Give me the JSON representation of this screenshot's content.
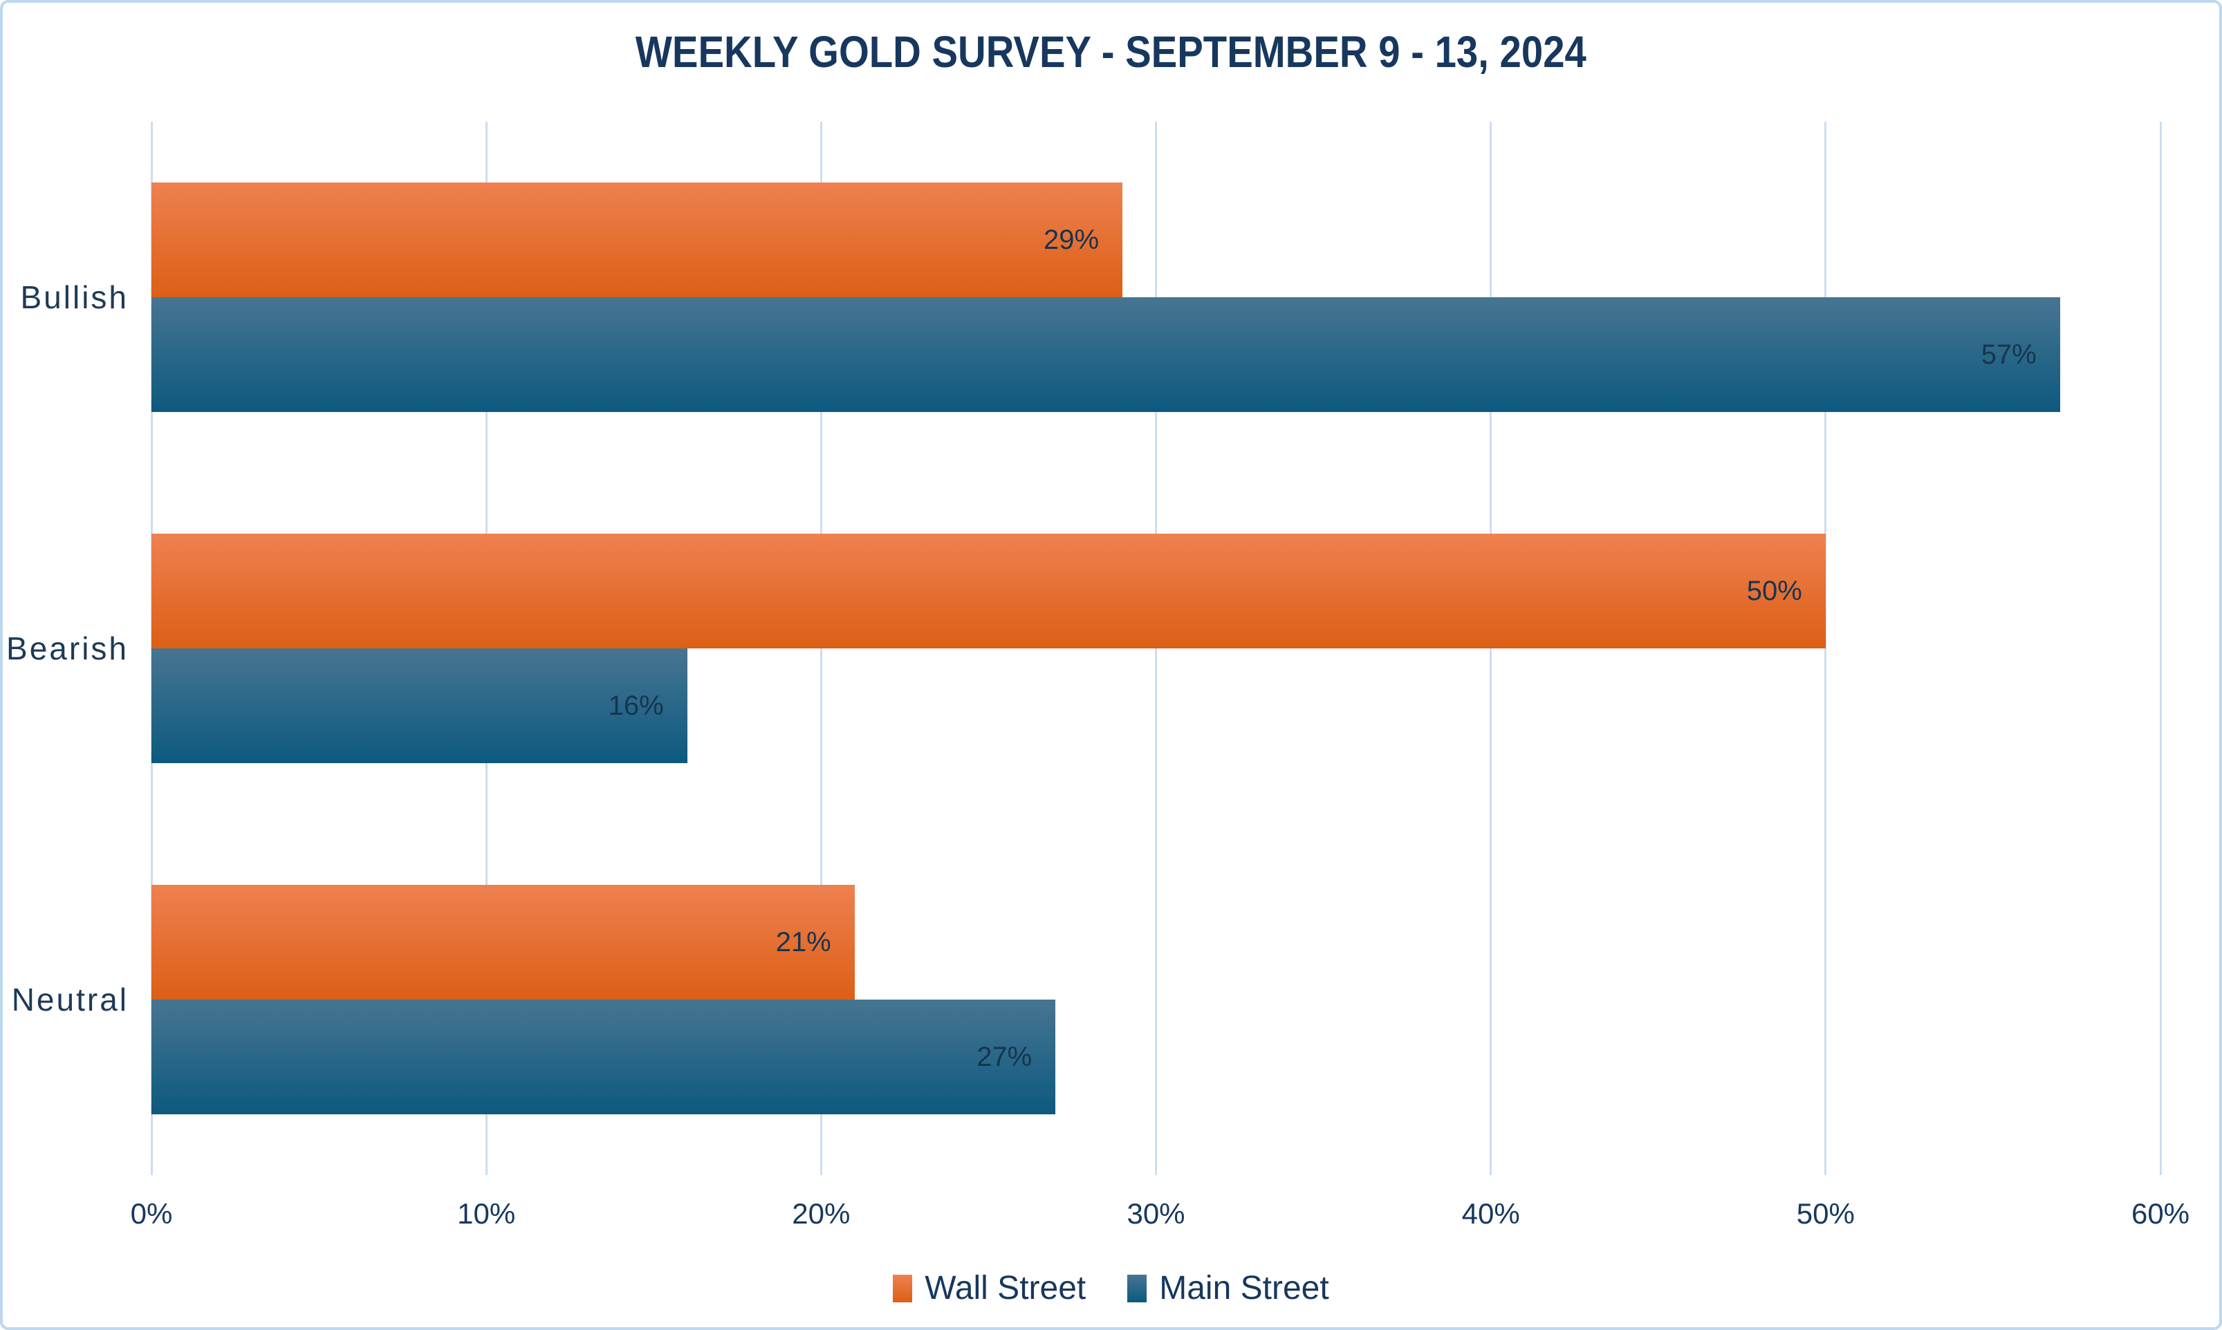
{
  "title": "WEEKLY GOLD SURVEY - SEPTEMBER 9 - 13, 2024",
  "colors": {
    "background": "#FFFFFF",
    "frame_border": "#BDD7EE",
    "grid_line": "#CBDEF1",
    "text_navy": "#17375E",
    "data_label": "#17344F",
    "wall_street_gradient_top": "#EE8150",
    "wall_street_gradient_bottom": "#DC5F16",
    "main_street_gradient_top": "#477591",
    "main_street_gradient_bottom": "#0C597F"
  },
  "chart_data": {
    "type": "bar",
    "orientation": "horizontal",
    "title": "WEEKLY GOLD SURVEY - SEPTEMBER 9 - 13, 2024",
    "categories": [
      "Bullish",
      "Bearish",
      "Neutral"
    ],
    "series": [
      {
        "name": "Wall Street",
        "values": [
          29,
          50,
          21
        ],
        "labels": [
          "29%",
          "50%",
          "21%"
        ],
        "gradient_top": "#EE8150",
        "gradient_bottom": "#DC5F16"
      },
      {
        "name": "Main Street",
        "values": [
          57,
          16,
          27
        ],
        "labels": [
          "57%",
          "16%",
          "27%"
        ],
        "gradient_top": "#477591",
        "gradient_bottom": "#0C597F"
      }
    ],
    "xlabel": "",
    "ylabel": "",
    "xlim": [
      0,
      60
    ],
    "x_tick_interval": 10,
    "x_tick_labels": [
      "0%",
      "10%",
      "20%",
      "30%",
      "40%",
      "50%",
      "60%"
    ],
    "grid": "vertical",
    "legend_position": "bottom",
    "value_suffix": "%"
  }
}
